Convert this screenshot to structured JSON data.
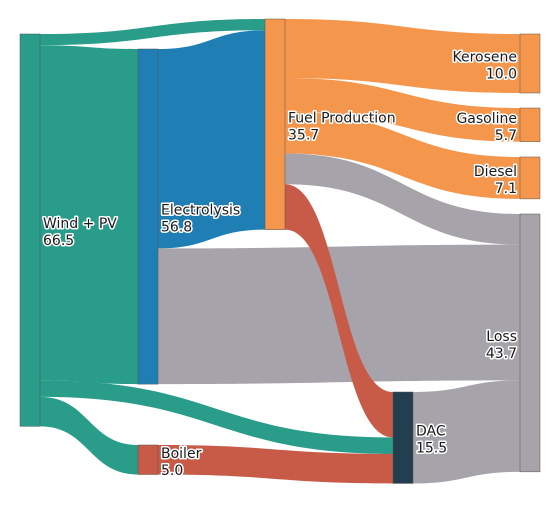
{
  "chart_data": {
    "type": "sankey",
    "value_unit": "",
    "nodes": [
      {
        "id": "wind_pv",
        "label": "Wind + PV",
        "value": "66.5",
        "color": "#2a9d8a"
      },
      {
        "id": "electrolysis",
        "label": "Electrolysis",
        "value": "56.8",
        "color": "#1f7fb4"
      },
      {
        "id": "boiler",
        "label": "Boiler",
        "value": "5.0",
        "color": "#c85a48"
      },
      {
        "id": "fuel_production",
        "label": "Fuel Production",
        "value": "35.7",
        "color": "#f4964c"
      },
      {
        "id": "dac",
        "label": "DAC",
        "value": "15.5",
        "color": "#233f4f"
      },
      {
        "id": "kerosene",
        "label": "Kerosene",
        "value": "10.0",
        "color": "#f4964c"
      },
      {
        "id": "gasoline",
        "label": "Gasoline",
        "value": "5.7",
        "color": "#f4964c"
      },
      {
        "id": "diesel",
        "label": "Diesel",
        "value": "7.1",
        "color": "#f4964c"
      },
      {
        "id": "loss",
        "label": "Loss",
        "value": "43.7",
        "color": "#a6a3ab"
      }
    ],
    "links": [
      {
        "source": "wind_pv",
        "target": "fuel_production",
        "value": 1.9,
        "color": "#2a9d8a"
      },
      {
        "source": "wind_pv",
        "target": "electrolysis",
        "value": 56.8,
        "color": "#2a9d8a"
      },
      {
        "source": "wind_pv",
        "target": "dac",
        "value": 2.8,
        "color": "#2a9d8a"
      },
      {
        "source": "wind_pv",
        "target": "boiler",
        "value": 5.0,
        "color": "#2a9d8a"
      },
      {
        "source": "electrolysis",
        "target": "fuel_production",
        "value": 33.8,
        "color": "#1f7fb4"
      },
      {
        "source": "electrolysis",
        "target": "loss",
        "value": 23.0,
        "color": "#a6a3ab"
      },
      {
        "source": "boiler",
        "target": "dac",
        "value": 5.0,
        "color": "#c85a48"
      },
      {
        "source": "fuel_production",
        "target": "kerosene",
        "value": 10.0,
        "color": "#f4964c"
      },
      {
        "source": "fuel_production",
        "target": "gasoline",
        "value": 5.7,
        "color": "#f4964c"
      },
      {
        "source": "fuel_production",
        "target": "diesel",
        "value": 7.1,
        "color": "#f4964c"
      },
      {
        "source": "fuel_production",
        "target": "loss",
        "value": 5.2,
        "color": "#a6a3ab"
      },
      {
        "source": "fuel_production",
        "target": "dac",
        "value": 7.7,
        "color": "#c85a48"
      },
      {
        "source": "dac",
        "target": "loss",
        "value": 15.5,
        "color": "#a6a3ab"
      }
    ]
  }
}
